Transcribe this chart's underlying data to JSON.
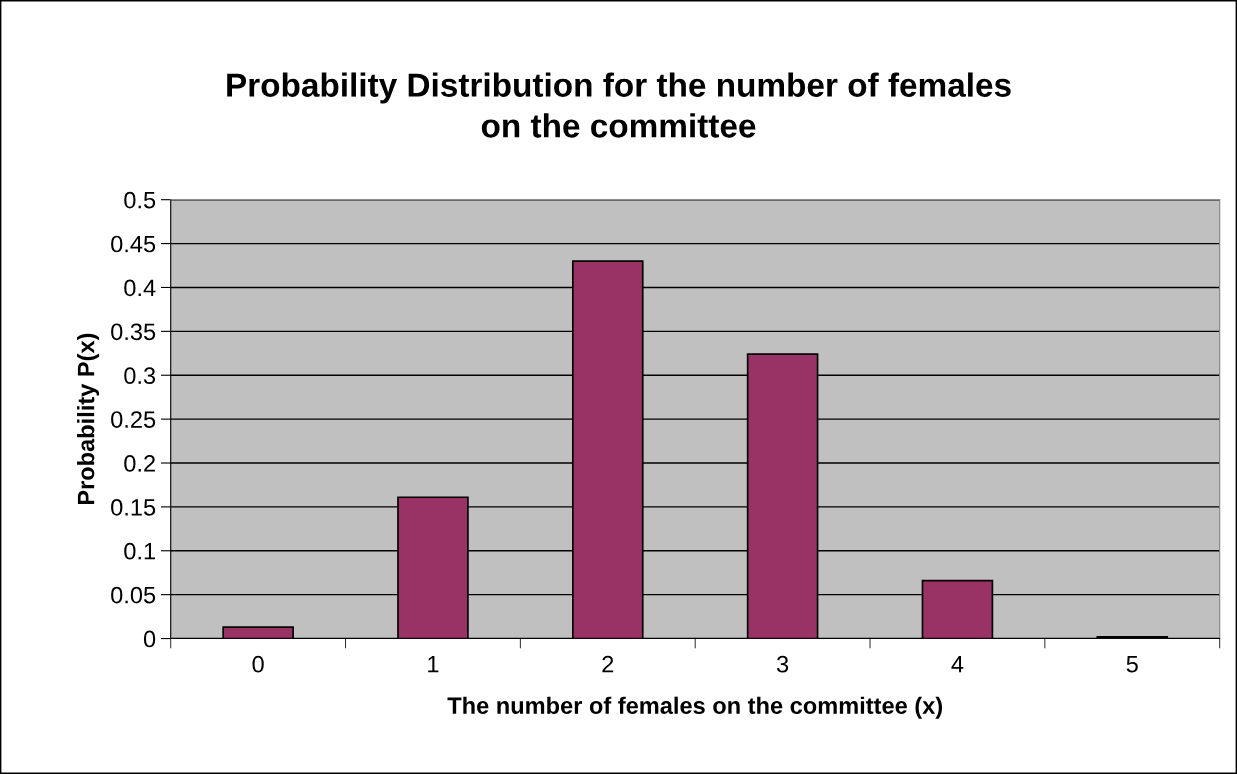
{
  "chart_data": {
    "type": "bar",
    "title": "Probability Distribution for the number of females\non the committee",
    "xlabel": "The number of females on the committee (x)",
    "ylabel": "Probability P(x)",
    "categories": [
      "0",
      "1",
      "2",
      "3",
      "4",
      "5"
    ],
    "values": [
      0.013,
      0.161,
      0.43,
      0.324,
      0.066,
      0.002
    ],
    "color": "#993366",
    "ylim": [
      0,
      0.5
    ],
    "yticks": [
      0,
      0.05,
      0.1,
      0.15,
      0.2,
      0.25,
      0.3,
      0.35,
      0.4,
      0.45,
      0.5
    ],
    "grid": "y"
  }
}
